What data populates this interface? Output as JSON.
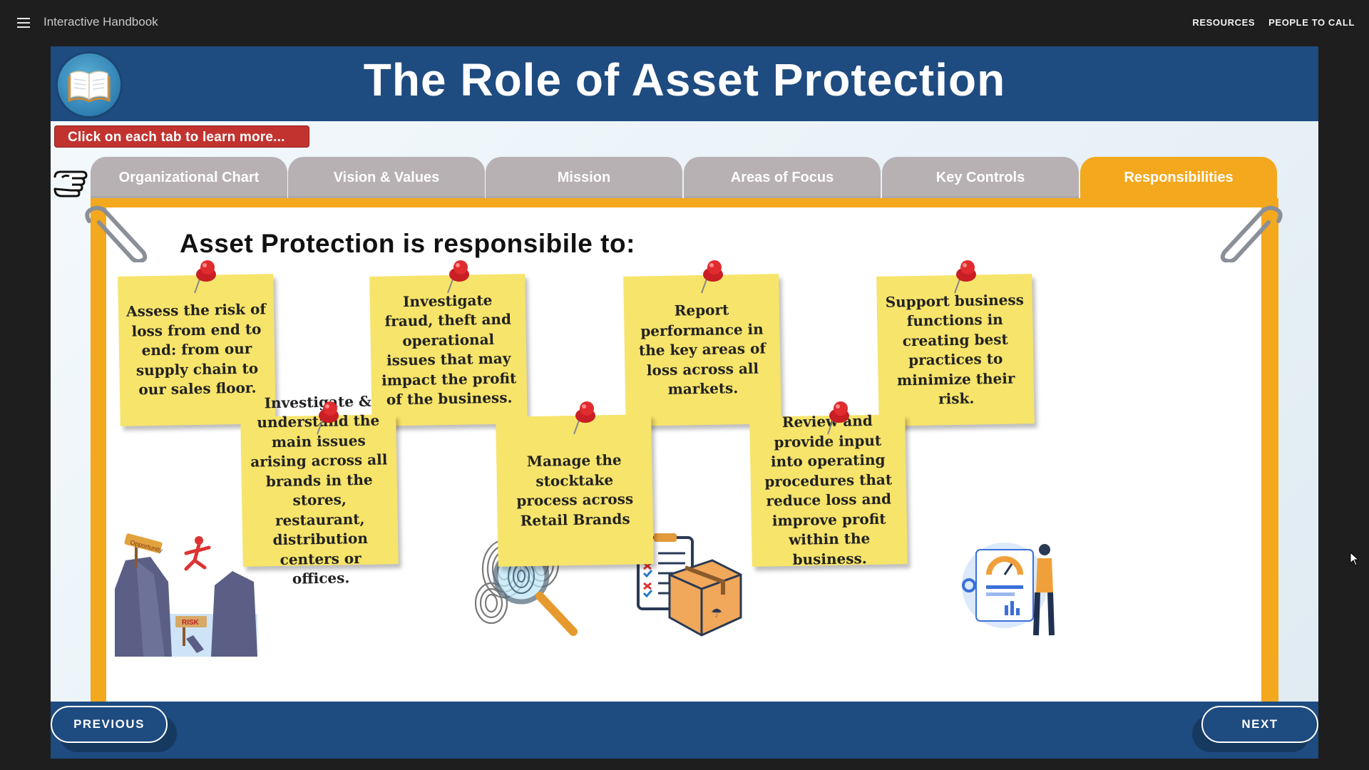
{
  "app": {
    "title": "Interactive Handbook",
    "menu_icon": "hamburger-menu-icon",
    "top_links": [
      "RESOURCES",
      "PEOPLE TO CALL"
    ]
  },
  "slide": {
    "title": "The Role of Asset Protection",
    "hint": "Click on each tab to learn more...",
    "tabs": [
      {
        "label": "Organizational Chart",
        "active": false
      },
      {
        "label": "Vision & Values",
        "active": false
      },
      {
        "label": "Mission",
        "active": false
      },
      {
        "label": "Areas of Focus",
        "active": false
      },
      {
        "label": "Key Controls",
        "active": false
      },
      {
        "label": "Responsibilities",
        "active": true
      }
    ],
    "heading": "Asset Protection is responsibile to:",
    "notes": [
      "Assess the risk of loss from end to end: from our supply chain to our sales floor.",
      "Investigate & understand the main issues arising across all brands in the stores, restaurant, distribution centers or offices.",
      "Investigate fraud, theft and operational issues that may impact the profit of the business.",
      "Manage the stocktake process across Retail Brands",
      "Report performance in the key areas of loss across all markets.",
      "Review and provide input into operating procedures that reduce loss and improve profit within the business.",
      "Support business functions in creating best practices to minimize their risk."
    ],
    "illustrations": {
      "risk_sign_left": "Opportunity",
      "risk_sign_right": "RISK"
    }
  },
  "footer": {
    "previous": "PREVIOUS",
    "next": "NEXT"
  },
  "colors": {
    "title_bar": "#1e4b80",
    "tab_active": "#f4a81d",
    "tab_inactive": "#b7b1b4",
    "note": "#f7e46a",
    "hint": "#c2332f"
  }
}
